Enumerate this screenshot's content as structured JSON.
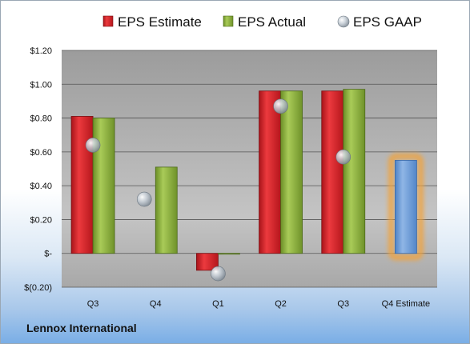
{
  "company_name": "Lennox International",
  "chart_data": {
    "type": "bar",
    "categories": [
      "Q3",
      "Q4",
      "Q1",
      "Q2",
      "Q3",
      "Q4 Estimate"
    ],
    "series": [
      {
        "name": "EPS Estimate",
        "values": [
          0.81,
          null,
          -0.1,
          0.96,
          0.96,
          0.55
        ],
        "color": "#d9262b"
      },
      {
        "name": "EPS Actual",
        "values": [
          0.8,
          0.51,
          0.0,
          0.96,
          0.97,
          null
        ],
        "color": "#8db33d"
      },
      {
        "name": "EPS GAAP",
        "values": [
          0.64,
          0.32,
          -0.12,
          0.87,
          0.57,
          null
        ],
        "color": "#b9c3cc"
      }
    ],
    "estimate_bar_color": "#6f9fd8",
    "ytick_labels": [
      "$1.20",
      "$1.00",
      "$0.80",
      "$0.60",
      "$0.40",
      "$0.20",
      "$-",
      "$(0.20)"
    ],
    "ylim": [
      -0.2,
      1.2
    ],
    "grid": true,
    "legend_position": "top"
  }
}
